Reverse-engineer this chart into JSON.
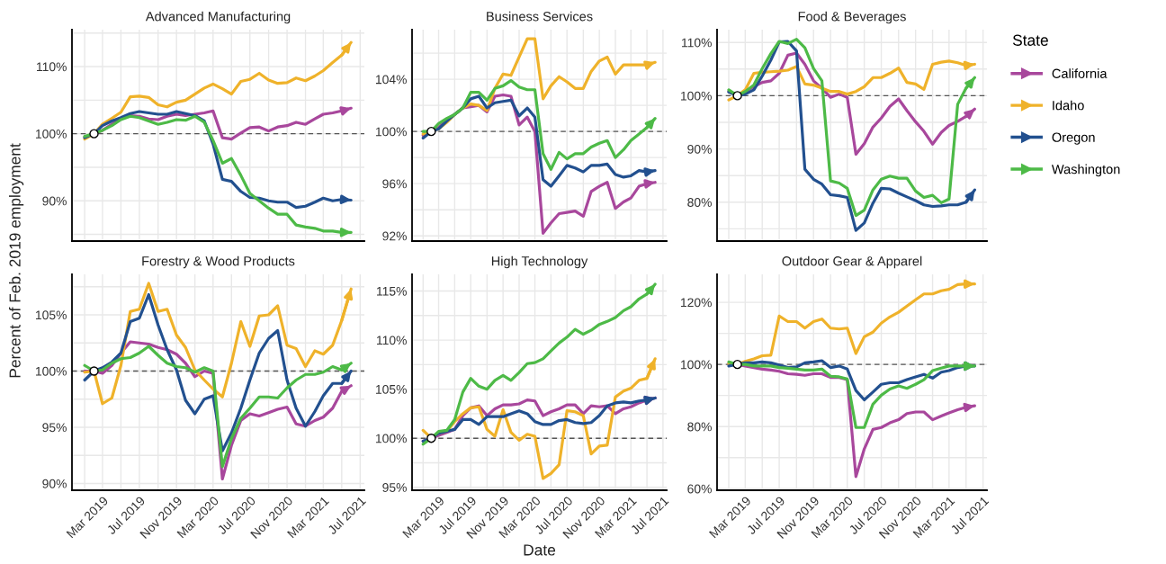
{
  "chart_data": [
    {
      "type": "line",
      "title": "Advanced Manufacturing",
      "ylabel": "Percent of Feb. 2019 employment",
      "legend": "right",
      "legend_title": "State",
      "tick_labels": "y",
      "grid": true,
      "x": [
        "2019-01",
        "2019-02",
        "2019-03",
        "2019-04",
        "2019-05",
        "2019-06",
        "2019-07",
        "2019-08",
        "2019-09",
        "2019-10",
        "2019-11",
        "2019-12",
        "2020-01",
        "2020-02",
        "2020-03",
        "2020-04",
        "2020-05",
        "2020-06",
        "2020-07",
        "2020-08",
        "2020-09",
        "2020-10",
        "2020-11",
        "2020-12",
        "2021-01",
        "2021-02",
        "2021-03",
        "2021-04",
        "2021-05",
        "2021-06"
      ],
      "xlim": [
        "2018-11-20",
        "2021-07-15"
      ],
      "xticks": [
        {
          "value": "2019-01",
          "label": null
        },
        {
          "value": "2019-03",
          "label": null
        },
        {
          "value": "2019-05",
          "label": null
        },
        {
          "value": "2019-07",
          "label": null
        },
        {
          "value": "2019-09",
          "label": null
        },
        {
          "value": "2019-11",
          "label": null
        },
        {
          "value": "2020-01",
          "label": null
        },
        {
          "value": "2020-03",
          "label": null
        },
        {
          "value": "2020-05",
          "label": null
        },
        {
          "value": "2020-07",
          "label": null
        },
        {
          "value": "2020-09",
          "label": null
        },
        {
          "value": "2020-11",
          "label": null
        },
        {
          "value": "2021-01",
          "label": null
        },
        {
          "value": "2021-03",
          "label": null
        },
        {
          "value": "2021-05",
          "label": null
        },
        {
          "value": "2021-07",
          "label": null
        }
      ],
      "ylim": [
        84,
        115.5
      ],
      "yticks": [
        {
          "value": 85,
          "label": null
        },
        {
          "value": 90,
          "label": "90%"
        },
        {
          "value": 95,
          "label": null
        },
        {
          "value": 100,
          "label": "100%"
        },
        {
          "value": 105,
          "label": null
        },
        {
          "value": 110,
          "label": "110%"
        },
        {
          "value": 115,
          "label": null
        }
      ],
      "ref_lines": [
        {
          "axis": "y",
          "value": 100,
          "color": "#555555",
          "line_style": "dashed"
        }
      ],
      "series": [
        {
          "name": "California",
          "color": "#a8479c",
          "values": [
            99.5,
            100,
            100.5,
            101.4,
            102.3,
            102.7,
            102.6,
            102.2,
            102.1,
            102.6,
            102.9,
            102.7,
            102.9,
            103.1,
            103.4,
            99.4,
            99.2,
            100.1,
            100.9,
            101.0,
            100.4,
            101.0,
            101.2,
            101.7,
            101.4,
            102.2,
            102.9,
            103.1,
            103.4,
            103.8
          ]
        },
        {
          "name": "Idaho",
          "color": "#efb22a",
          "values": [
            99.2,
            100,
            101.4,
            102.3,
            103.2,
            105.5,
            105.6,
            105.4,
            104.3,
            104.0,
            104.7,
            105.0,
            105.9,
            106.8,
            107.4,
            106.7,
            105.9,
            107.8,
            108.1,
            109.0,
            108.0,
            107.5,
            107.6,
            108.3,
            107.9,
            108.6,
            109.4,
            110.6,
            111.7,
            113.6
          ]
        },
        {
          "name": "Oregon",
          "color": "#22508f",
          "values": [
            99.4,
            100,
            101.2,
            101.9,
            102.4,
            103.0,
            103.3,
            103.1,
            102.9,
            102.9,
            103.3,
            103.0,
            102.7,
            101.9,
            98.5,
            93.2,
            92.9,
            91.4,
            90.5,
            90.4,
            90.0,
            89.8,
            89.8,
            89.0,
            89.2,
            89.8,
            90.4,
            90.0,
            90.2,
            90.1
          ]
        },
        {
          "name": "Washington",
          "color": "#4dba47",
          "values": [
            99.6,
            100,
            100.5,
            101.2,
            102.1,
            102.6,
            102.4,
            101.9,
            101.4,
            101.7,
            102.1,
            102.0,
            102.6,
            101.7,
            99.0,
            95.6,
            96.3,
            93.8,
            91.1,
            90.0,
            88.9,
            88.0,
            88.0,
            86.4,
            86.1,
            85.9,
            85.5,
            85.5,
            85.3,
            85.3
          ]
        },
        {
          "type": "scatter",
          "color": "#ffffff",
          "marker": "circle",
          "x": [
            "2019-02"
          ],
          "values": [
            100
          ]
        }
      ]
    },
    {
      "type": "line",
      "title": "Business Services",
      "tick_labels": "y",
      "grid": true,
      "x": [
        "2019-01",
        "2019-02",
        "2019-03",
        "2019-04",
        "2019-05",
        "2019-06",
        "2019-07",
        "2019-08",
        "2019-09",
        "2019-10",
        "2019-11",
        "2019-12",
        "2020-01",
        "2020-02",
        "2020-03",
        "2020-04",
        "2020-05",
        "2020-06",
        "2020-07",
        "2020-08",
        "2020-09",
        "2020-10",
        "2020-11",
        "2020-12",
        "2021-01",
        "2021-02",
        "2021-03",
        "2021-04",
        "2021-05",
        "2021-06"
      ],
      "xlim": [
        "2018-11-20",
        "2021-07-15"
      ],
      "xticks": [
        {
          "value": "2019-01",
          "label": null
        },
        {
          "value": "2019-03",
          "label": null
        },
        {
          "value": "2019-05",
          "label": null
        },
        {
          "value": "2019-07",
          "label": null
        },
        {
          "value": "2019-09",
          "label": null
        },
        {
          "value": "2019-11",
          "label": null
        },
        {
          "value": "2020-01",
          "label": null
        },
        {
          "value": "2020-03",
          "label": null
        },
        {
          "value": "2020-05",
          "label": null
        },
        {
          "value": "2020-07",
          "label": null
        },
        {
          "value": "2020-09",
          "label": null
        },
        {
          "value": "2020-11",
          "label": null
        },
        {
          "value": "2021-01",
          "label": null
        },
        {
          "value": "2021-03",
          "label": null
        },
        {
          "value": "2021-05",
          "label": null
        },
        {
          "value": "2021-07",
          "label": null
        }
      ],
      "ylim": [
        91.6,
        107.8
      ],
      "yticks": [
        {
          "value": 92,
          "label": "92%"
        },
        {
          "value": 94,
          "label": null
        },
        {
          "value": 96,
          "label": "96%"
        },
        {
          "value": 98,
          "label": null
        },
        {
          "value": 100,
          "label": "100%"
        },
        {
          "value": 102,
          "label": null
        },
        {
          "value": 104,
          "label": "104%"
        },
        {
          "value": 106,
          "label": null
        }
      ],
      "ref_lines": [
        {
          "axis": "y",
          "value": 100,
          "color": "#555555",
          "line_style": "dashed"
        }
      ],
      "series": [
        {
          "color": "#a8479c",
          "values": [
            99.7,
            100,
            100.3,
            100.9,
            101.3,
            101.8,
            101.9,
            102.0,
            101.5,
            102.7,
            102.8,
            102.7,
            100.5,
            101.1,
            100.0,
            92.2,
            93.0,
            93.7,
            93.8,
            93.9,
            93.5,
            95.4,
            95.8,
            96.1,
            94.1,
            94.6,
            94.9,
            95.8,
            96.0,
            96.1
          ]
        },
        {
          "color": "#efb22a",
          "values": [
            99.8,
            100,
            100.2,
            100.7,
            101.3,
            101.8,
            102.1,
            102.0,
            101.6,
            103.3,
            104.4,
            104.3,
            105.7,
            107.1,
            107.1,
            102.5,
            103.5,
            104.2,
            103.8,
            103.3,
            103.3,
            104.6,
            105.4,
            105.7,
            104.4,
            105.1,
            105.1,
            105.1,
            105.1,
            105.3
          ]
        },
        {
          "color": "#22508f",
          "values": [
            99.5,
            100,
            100.2,
            100.8,
            101.3,
            101.8,
            102.5,
            102.7,
            101.8,
            102.2,
            102.3,
            102.4,
            101.2,
            101.8,
            101.1,
            96.3,
            95.8,
            96.6,
            97.4,
            97.2,
            96.9,
            97.4,
            97.4,
            97.5,
            96.7,
            96.5,
            96.6,
            97.0,
            96.9,
            97.0
          ]
        },
        {
          "color": "#4dba47",
          "values": [
            100,
            100,
            100.6,
            101.0,
            101.3,
            101.8,
            103.0,
            103.0,
            102.4,
            103.3,
            103.5,
            103.9,
            103.4,
            103.2,
            103.2,
            98.3,
            97.1,
            98.4,
            97.9,
            98.3,
            98.3,
            98.8,
            99.1,
            99.3,
            98.0,
            98.6,
            99.3,
            99.8,
            100.3,
            101.0
          ]
        },
        {
          "type": "scatter",
          "color": "#ffffff",
          "marker": "circle",
          "x": [
            "2019-02"
          ],
          "values": [
            100
          ]
        }
      ]
    },
    {
      "type": "line",
      "title": "Food & Beverages",
      "tick_labels": "y",
      "grid": true,
      "x": [
        "2019-01",
        "2019-02",
        "2019-03",
        "2019-04",
        "2019-05",
        "2019-06",
        "2019-07",
        "2019-08",
        "2019-09",
        "2019-10",
        "2019-11",
        "2019-12",
        "2020-01",
        "2020-02",
        "2020-03",
        "2020-04",
        "2020-05",
        "2020-06",
        "2020-07",
        "2020-08",
        "2020-09",
        "2020-10",
        "2020-11",
        "2020-12",
        "2021-01",
        "2021-02",
        "2021-03",
        "2021-04",
        "2021-05",
        "2021-06"
      ],
      "xlim": [
        "2018-11-20",
        "2021-07-15"
      ],
      "xticks": [
        {
          "value": "2019-01",
          "label": null
        },
        {
          "value": "2019-03",
          "label": null
        },
        {
          "value": "2019-05",
          "label": null
        },
        {
          "value": "2019-07",
          "label": null
        },
        {
          "value": "2019-09",
          "label": null
        },
        {
          "value": "2019-11",
          "label": null
        },
        {
          "value": "2020-01",
          "label": null
        },
        {
          "value": "2020-03",
          "label": null
        },
        {
          "value": "2020-05",
          "label": null
        },
        {
          "value": "2020-07",
          "label": null
        },
        {
          "value": "2020-09",
          "label": null
        },
        {
          "value": "2020-11",
          "label": null
        },
        {
          "value": "2021-01",
          "label": null
        },
        {
          "value": "2021-03",
          "label": null
        },
        {
          "value": "2021-05",
          "label": null
        },
        {
          "value": "2021-07",
          "label": null
        }
      ],
      "ylim": [
        72.7,
        112.4
      ],
      "yticks": [
        {
          "value": 75,
          "label": null
        },
        {
          "value": 80,
          "label": "80%"
        },
        {
          "value": 85,
          "label": null
        },
        {
          "value": 90,
          "label": "90%"
        },
        {
          "value": 95,
          "label": null
        },
        {
          "value": 100,
          "label": "100%"
        },
        {
          "value": 105,
          "label": null
        },
        {
          "value": 110,
          "label": "110%"
        }
      ],
      "ref_lines": [
        {
          "axis": "y",
          "value": 100,
          "color": "#555555",
          "line_style": "dashed"
        }
      ],
      "series": [
        {
          "color": "#a8479c",
          "values": [
            100.8,
            100,
            100.8,
            101.7,
            102.5,
            102.8,
            104.2,
            107.6,
            108.0,
            105.9,
            102.8,
            101.4,
            99.7,
            100.3,
            99.7,
            89.0,
            91.0,
            94.1,
            95.8,
            98.0,
            99.4,
            97.2,
            95.1,
            93.3,
            90.9,
            93.1,
            94.4,
            95.2,
            96.1,
            97.5
          ]
        },
        {
          "color": "#efb22a",
          "values": [
            99.2,
            100,
            101.1,
            104.2,
            104.4,
            104.5,
            104.6,
            104.8,
            105.5,
            102.2,
            102.0,
            101.4,
            100.8,
            100.8,
            100.3,
            100.8,
            101.7,
            103.4,
            103.4,
            104.2,
            105.2,
            102.5,
            102.2,
            101.2,
            105.9,
            106.3,
            106.5,
            106.2,
            105.7,
            105.9
          ]
        },
        {
          "color": "#22508f",
          "values": [
            100.7,
            100,
            100.3,
            101.1,
            103.7,
            106.7,
            110.1,
            110.2,
            108.4,
            86.2,
            84.3,
            83.4,
            81.4,
            81.2,
            80.9,
            74.7,
            76.1,
            79.8,
            82.6,
            82.5,
            81.7,
            81.0,
            80.3,
            79.5,
            79.2,
            79.3,
            79.5,
            79.5,
            80.0,
            82.3
          ]
        },
        {
          "color": "#4dba47",
          "values": [
            101.1,
            100,
            100.8,
            102.0,
            105.1,
            107.9,
            110.2,
            109.8,
            110.6,
            109.0,
            105.1,
            102.8,
            84.0,
            83.6,
            82.6,
            77.5,
            78.5,
            82.3,
            84.3,
            84.9,
            84.5,
            84.5,
            82.1,
            80.9,
            81.3,
            79.9,
            80.6,
            98.4,
            101.4,
            103.4
          ]
        },
        {
          "type": "scatter",
          "color": "#ffffff",
          "marker": "circle",
          "x": [
            "2019-02"
          ],
          "values": [
            100
          ]
        }
      ]
    },
    {
      "type": "line",
      "title": "Forestry & Wood Products",
      "grid": true,
      "x": [
        "2019-01",
        "2019-02",
        "2019-03",
        "2019-04",
        "2019-05",
        "2019-06",
        "2019-07",
        "2019-08",
        "2019-09",
        "2019-10",
        "2019-11",
        "2019-12",
        "2020-01",
        "2020-02",
        "2020-03",
        "2020-04",
        "2020-05",
        "2020-06",
        "2020-07",
        "2020-08",
        "2020-09",
        "2020-10",
        "2020-11",
        "2020-12",
        "2021-01",
        "2021-02",
        "2021-03",
        "2021-04",
        "2021-05",
        "2021-06"
      ],
      "xlim": [
        "2018-11-20",
        "2021-07-15"
      ],
      "xticks": [
        {
          "value": "2019-01",
          "label": null
        },
        {
          "value": "2019-03",
          "label": "Mar 2019"
        },
        {
          "value": "2019-05",
          "label": null
        },
        {
          "value": "2019-07",
          "label": "Jul 2019"
        },
        {
          "value": "2019-09",
          "label": null
        },
        {
          "value": "2019-11",
          "label": "Nov 2019"
        },
        {
          "value": "2020-01",
          "label": null
        },
        {
          "value": "2020-03",
          "label": "Mar 2020"
        },
        {
          "value": "2020-05",
          "label": null
        },
        {
          "value": "2020-07",
          "label": "Jul 2020"
        },
        {
          "value": "2020-09",
          "label": null
        },
        {
          "value": "2020-11",
          "label": "Nov 2020"
        },
        {
          "value": "2021-01",
          "label": null
        },
        {
          "value": "2021-03",
          "label": "Mar 2021"
        },
        {
          "value": "2021-05",
          "label": null
        },
        {
          "value": "2021-07",
          "label": "Jul 2021"
        }
      ],
      "ylim": [
        89.4,
        108.6
      ],
      "yticks": [
        {
          "value": 90,
          "label": "90%"
        },
        {
          "value": 92.5,
          "label": null
        },
        {
          "value": 95,
          "label": "95%"
        },
        {
          "value": 97.5,
          "label": null
        },
        {
          "value": 100,
          "label": "100%"
        },
        {
          "value": 102.5,
          "label": null
        },
        {
          "value": 105,
          "label": "105%"
        },
        {
          "value": 107.5,
          "label": null
        }
      ],
      "ref_lines": [
        {
          "axis": "y",
          "value": 100,
          "color": "#555555",
          "line_style": "dashed"
        }
      ],
      "series": [
        {
          "color": "#a8479c",
          "values": [
            100,
            100,
            99.8,
            100.5,
            101.6,
            102.6,
            102.5,
            102.4,
            102.1,
            101.9,
            101.5,
            100.7,
            99.5,
            100.0,
            99.8,
            90.4,
            93.4,
            95.6,
            96.2,
            96.0,
            96.3,
            96.6,
            96.8,
            95.3,
            95.1,
            95.6,
            95.9,
            96.7,
            98.2,
            98.7
          ]
        },
        {
          "color": "#efb22a",
          "values": [
            99.9,
            100,
            97.1,
            97.6,
            100.5,
            105.3,
            105.5,
            107.8,
            105.3,
            105.5,
            103.2,
            102.1,
            100.1,
            99.2,
            98.4,
            97.7,
            100.7,
            104.4,
            102.2,
            104.9,
            105.0,
            105.8,
            102.3,
            102.0,
            100.4,
            101.8,
            101.5,
            102.3,
            104.5,
            107.3
          ]
        },
        {
          "color": "#22508f",
          "values": [
            99.2,
            100,
            100.3,
            100.8,
            101.6,
            104.4,
            104.7,
            106.8,
            104.1,
            101.9,
            100.1,
            97.4,
            96.2,
            97.5,
            97.8,
            92.9,
            94.5,
            96.7,
            99.2,
            101.6,
            102.9,
            103.6,
            99.2,
            96.7,
            95.1,
            96.4,
            97.8,
            98.9,
            98.9,
            100.0
          ]
        },
        {
          "color": "#4dba47",
          "values": [
            100.5,
            100,
            100.1,
            100.7,
            101.1,
            101.2,
            101.6,
            102.2,
            101.4,
            100.7,
            100.4,
            100.3,
            99.9,
            100.3,
            100.0,
            91.5,
            94.0,
            95.8,
            96.7,
            97.7,
            97.7,
            97.6,
            98.5,
            99.2,
            99.7,
            99.7,
            99.9,
            100.4,
            100.1,
            100.7
          ]
        },
        {
          "type": "scatter",
          "color": "#ffffff",
          "marker": "circle",
          "x": [
            "2019-02"
          ],
          "values": [
            100
          ]
        }
      ]
    },
    {
      "type": "line",
      "title": "High Technology",
      "xlabel": "Date",
      "grid": true,
      "x": [
        "2019-01",
        "2019-02",
        "2019-03",
        "2019-04",
        "2019-05",
        "2019-06",
        "2019-07",
        "2019-08",
        "2019-09",
        "2019-10",
        "2019-11",
        "2019-12",
        "2020-01",
        "2020-02",
        "2020-03",
        "2020-04",
        "2020-05",
        "2020-06",
        "2020-07",
        "2020-08",
        "2020-09",
        "2020-10",
        "2020-11",
        "2020-12",
        "2021-01",
        "2021-02",
        "2021-03",
        "2021-04",
        "2021-05",
        "2021-06"
      ],
      "xlim": [
        "2018-11-20",
        "2021-07-15"
      ],
      "xticks": [
        {
          "value": "2019-01",
          "label": null
        },
        {
          "value": "2019-03",
          "label": "Mar 2019"
        },
        {
          "value": "2019-05",
          "label": null
        },
        {
          "value": "2019-07",
          "label": "Jul 2019"
        },
        {
          "value": "2019-09",
          "label": null
        },
        {
          "value": "2019-11",
          "label": "Nov 2019"
        },
        {
          "value": "2020-01",
          "label": null
        },
        {
          "value": "2020-03",
          "label": "Mar 2020"
        },
        {
          "value": "2020-05",
          "label": null
        },
        {
          "value": "2020-07",
          "label": "Jul 2020"
        },
        {
          "value": "2020-09",
          "label": null
        },
        {
          "value": "2020-11",
          "label": "Nov 2020"
        },
        {
          "value": "2021-01",
          "label": null
        },
        {
          "value": "2021-03",
          "label": "Mar 2021"
        },
        {
          "value": "2021-05",
          "label": null
        },
        {
          "value": "2021-07",
          "label": "Jul 2021"
        }
      ],
      "ylim": [
        94.7,
        116.7
      ],
      "yticks": [
        {
          "value": 95,
          "label": "95%"
        },
        {
          "value": 97.5,
          "label": null
        },
        {
          "value": 100,
          "label": "100%"
        },
        {
          "value": 102.5,
          "label": null
        },
        {
          "value": 105,
          "label": "105%"
        },
        {
          "value": 107.5,
          "label": null
        },
        {
          "value": 110,
          "label": "110%"
        },
        {
          "value": 112.5,
          "label": null
        },
        {
          "value": 115,
          "label": "115%"
        }
      ],
      "ref_lines": [
        {
          "axis": "y",
          "value": 100,
          "color": "#555555",
          "line_style": "dashed"
        }
      ],
      "series": [
        {
          "color": "#a8479c",
          "values": [
            99.7,
            100,
            100.3,
            100.6,
            100.9,
            102.3,
            103.1,
            103.3,
            102.3,
            103.0,
            103.4,
            103.4,
            103.5,
            103.9,
            103.8,
            102.3,
            102.7,
            103.0,
            103.4,
            103.4,
            102.5,
            103.3,
            103.2,
            103.3,
            102.5,
            103.0,
            103.2,
            103.6,
            103.9,
            104.1
          ]
        },
        {
          "color": "#efb22a",
          "values": [
            100.8,
            100,
            100.5,
            100.7,
            101.7,
            102.5,
            103.1,
            103.2,
            100.9,
            100.2,
            102.9,
            100.6,
            99.8,
            100.4,
            100.2,
            95.9,
            96.4,
            97.3,
            102.8,
            102.7,
            102.3,
            98.4,
            99.2,
            99.3,
            104.2,
            104.8,
            105.1,
            105.9,
            106.1,
            108.1
          ]
        },
        {
          "color": "#22508f",
          "values": [
            99.7,
            100,
            100.5,
            100.7,
            100.9,
            101.9,
            101.9,
            101.4,
            102.2,
            102.2,
            102.2,
            102.5,
            102.8,
            102.5,
            101.7,
            101.4,
            101.4,
            101.8,
            101.9,
            101.6,
            101.5,
            101.6,
            102.3,
            103.3,
            103.6,
            103.7,
            103.6,
            103.8,
            103.9,
            104.1
          ]
        },
        {
          "color": "#4dba47",
          "values": [
            99.4,
            100,
            100.7,
            100.8,
            101.9,
            104.7,
            106.1,
            105.3,
            105.0,
            105.9,
            106.4,
            105.9,
            106.7,
            107.6,
            107.7,
            108.1,
            108.9,
            109.7,
            110.3,
            111.1,
            110.6,
            111.0,
            111.6,
            111.9,
            112.3,
            113.0,
            113.4,
            114.2,
            114.7,
            115.7
          ]
        },
        {
          "type": "scatter",
          "color": "#ffffff",
          "marker": "circle",
          "x": [
            "2019-02"
          ],
          "values": [
            100
          ]
        }
      ]
    },
    {
      "type": "line",
      "title": "Outdoor Gear & Apparel",
      "grid": true,
      "x": [
        "2019-01",
        "2019-02",
        "2019-03",
        "2019-04",
        "2019-05",
        "2019-06",
        "2019-07",
        "2019-08",
        "2019-09",
        "2019-10",
        "2019-11",
        "2019-12",
        "2020-01",
        "2020-02",
        "2020-03",
        "2020-04",
        "2020-05",
        "2020-06",
        "2020-07",
        "2020-08",
        "2020-09",
        "2020-10",
        "2020-11",
        "2020-12",
        "2021-01",
        "2021-02",
        "2021-03",
        "2021-04",
        "2021-05",
        "2021-06"
      ],
      "xlim": [
        "2018-11-20",
        "2021-07-15"
      ],
      "xticks": [
        {
          "value": "2019-01",
          "label": null
        },
        {
          "value": "2019-03",
          "label": "Mar 2019"
        },
        {
          "value": "2019-05",
          "label": null
        },
        {
          "value": "2019-07",
          "label": "Jul 2019"
        },
        {
          "value": "2019-09",
          "label": null
        },
        {
          "value": "2019-11",
          "label": "Nov 2019"
        },
        {
          "value": "2020-01",
          "label": null
        },
        {
          "value": "2020-03",
          "label": "Mar 2020"
        },
        {
          "value": "2020-05",
          "label": null
        },
        {
          "value": "2020-07",
          "label": "Jul 2020"
        },
        {
          "value": "2020-09",
          "label": null
        },
        {
          "value": "2020-11",
          "label": "Nov 2020"
        },
        {
          "value": "2021-01",
          "label": null
        },
        {
          "value": "2021-03",
          "label": "Mar 2021"
        },
        {
          "value": "2021-05",
          "label": null
        },
        {
          "value": "2021-07",
          "label": "Jul 2021"
        }
      ],
      "ylim": [
        59.5,
        129
      ],
      "yticks": [
        {
          "value": 60,
          "label": "60%"
        },
        {
          "value": 70,
          "label": null
        },
        {
          "value": 80,
          "label": "80%"
        },
        {
          "value": 90,
          "label": null
        },
        {
          "value": 100,
          "label": "100%"
        },
        {
          "value": 110,
          "label": null
        },
        {
          "value": 120,
          "label": "120%"
        }
      ],
      "ref_lines": [
        {
          "axis": "y",
          "value": 100,
          "color": "#555555",
          "line_style": "dashed"
        }
      ],
      "series": [
        {
          "color": "#a8479c",
          "values": [
            100.2,
            100,
            99.5,
            99.0,
            98.5,
            98.2,
            97.8,
            97.0,
            96.8,
            96.5,
            97.0,
            97.0,
            95.8,
            95.8,
            95.1,
            63.9,
            72.8,
            79.1,
            79.7,
            81.2,
            82.2,
            84.2,
            84.7,
            84.7,
            82.2,
            83.4,
            84.4,
            85.4,
            86.2,
            86.7
          ]
        },
        {
          "color": "#efb22a",
          "values": [
            100.2,
            100,
            101.0,
            101.8,
            102.8,
            103.0,
            115.6,
            113.8,
            113.8,
            111.7,
            113.8,
            114.6,
            111.7,
            111.4,
            111.7,
            103.5,
            108.9,
            110.4,
            113.3,
            115.3,
            116.8,
            118.8,
            120.8,
            122.7,
            122.7,
            123.7,
            124.2,
            125.7,
            125.9,
            125.9
          ]
        },
        {
          "color": "#22508f",
          "values": [
            99.5,
            100,
            100.5,
            100.5,
            100.8,
            100.5,
            99.8,
            99.0,
            99.2,
            100.5,
            100.8,
            101.2,
            99.0,
            99.5,
            98.5,
            91.6,
            88.6,
            91.1,
            93.6,
            94.1,
            94.1,
            95.1,
            96.0,
            96.8,
            95.6,
            97.5,
            98.0,
            99.0,
            99.5,
            99.5
          ]
        },
        {
          "color": "#4dba47",
          "values": [
            100.8,
            100,
            100.0,
            99.5,
            99.5,
            99.5,
            99.0,
            98.8,
            98.5,
            98.2,
            98.2,
            98.5,
            96.2,
            96.0,
            95.3,
            79.7,
            79.7,
            87.2,
            90.1,
            92.1,
            93.1,
            92.3,
            93.6,
            95.1,
            98.0,
            98.8,
            99.5,
            99.5,
            99.5,
            99.5
          ]
        },
        {
          "type": "scatter",
          "color": "#ffffff",
          "marker": "circle",
          "x": [
            "2019-02"
          ],
          "values": [
            100
          ]
        }
      ]
    }
  ]
}
